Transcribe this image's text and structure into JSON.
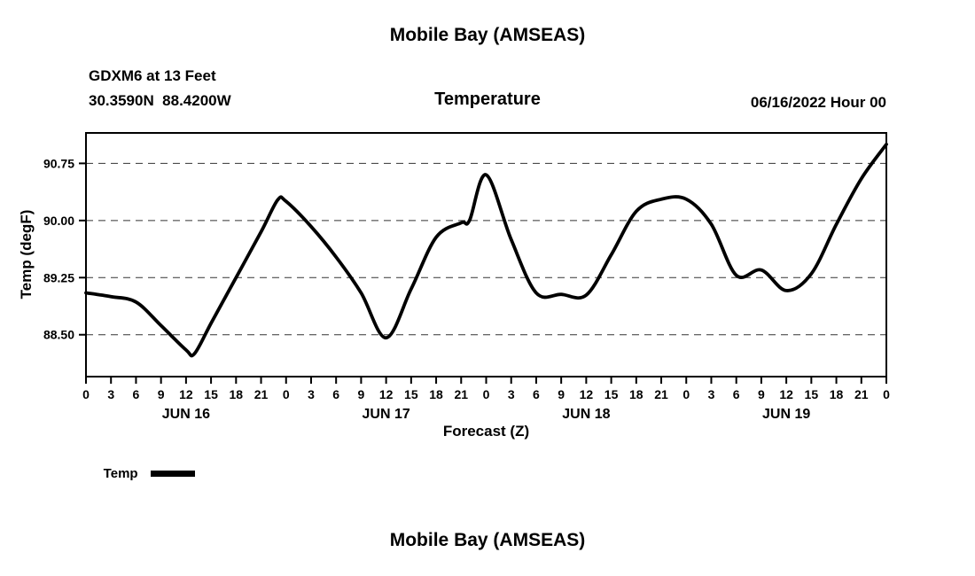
{
  "header": {
    "title": "Mobile Bay (AMSEAS)",
    "station": "GDXM6 at 13 Feet",
    "coords": "30.3590N  88.4200W",
    "variable": "Temperature",
    "init_time": "06/16/2022 Hour 00"
  },
  "axes": {
    "ylabel": "Temp (degF)",
    "xlabel": "Forecast (Z)"
  },
  "legend": {
    "label": "Temp",
    "color": "#000000"
  },
  "footer": {
    "next_title": "Mobile Bay (AMSEAS)"
  },
  "chart_data": {
    "type": "line",
    "title": "Mobile Bay (AMSEAS)",
    "subtitle": "Temperature",
    "xlabel": "Forecast (Z)",
    "ylabel": "Temp (degF)",
    "xlim": [
      0,
      96
    ],
    "ylim": [
      87.95,
      91.15
    ],
    "yticks": [
      88.5,
      89.25,
      90.0,
      90.75
    ],
    "xtick_step": 3,
    "xtick_label_mod": 24,
    "grid": "horizontal-dashed",
    "legend_position": "below-left",
    "day_labels": [
      {
        "label": "JUN 16",
        "hour": 12
      },
      {
        "label": "JUN 17",
        "hour": 36
      },
      {
        "label": "JUN 18",
        "hour": 60
      },
      {
        "label": "JUN 19",
        "hour": 84
      }
    ],
    "series": [
      {
        "name": "Temp",
        "color": "#000000",
        "x": [
          0,
          3,
          6,
          9,
          12,
          13,
          15,
          18,
          21,
          23,
          24,
          27,
          30,
          33,
          36,
          39,
          42,
          45,
          46,
          48,
          51,
          54,
          57,
          60,
          63,
          66,
          69,
          72,
          75,
          78,
          81,
          84,
          87,
          90,
          93,
          96
        ],
        "y": [
          89.05,
          89.0,
          88.93,
          88.62,
          88.3,
          88.25,
          88.65,
          89.25,
          89.85,
          90.27,
          90.25,
          89.92,
          89.52,
          89.05,
          88.46,
          89.1,
          89.78,
          89.97,
          90.0,
          90.6,
          89.75,
          89.05,
          89.03,
          89.02,
          89.55,
          90.12,
          90.28,
          90.28,
          89.95,
          89.28,
          89.35,
          89.08,
          89.3,
          89.95,
          90.55,
          91.0
        ]
      }
    ]
  }
}
